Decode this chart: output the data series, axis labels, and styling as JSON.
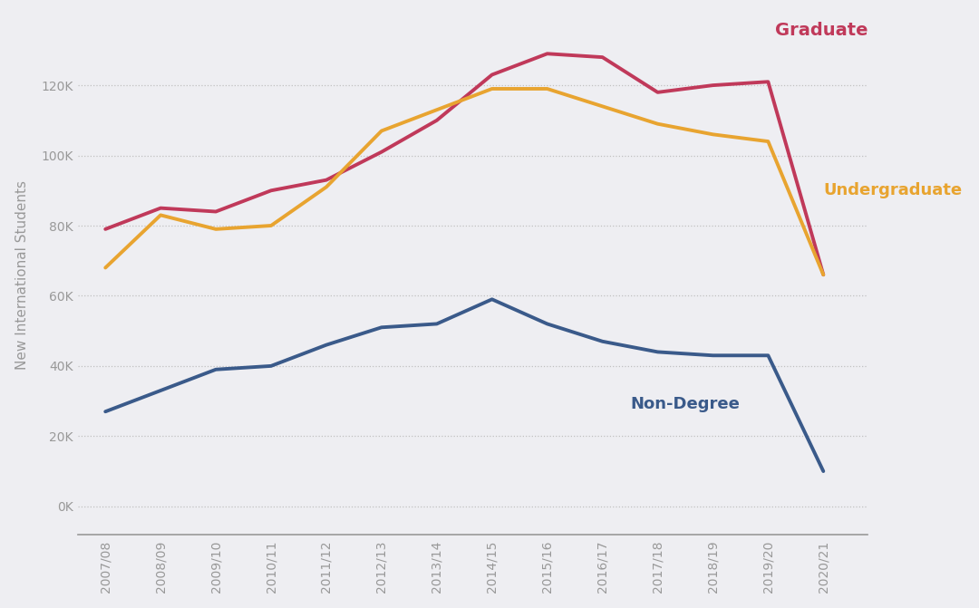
{
  "years": [
    "2007/08",
    "2008/09",
    "2009/10",
    "2010/11",
    "2011/12",
    "2012/13",
    "2013/14",
    "2014/15",
    "2015/16",
    "2016/17",
    "2017/18",
    "2018/19",
    "2019/20",
    "2020/21"
  ],
  "graduate": [
    79000,
    85000,
    84000,
    90000,
    93000,
    101000,
    110000,
    123000,
    129000,
    128000,
    118000,
    120000,
    121000,
    66000
  ],
  "undergraduate": [
    68000,
    83000,
    79000,
    80000,
    91000,
    107000,
    113000,
    119000,
    119000,
    114000,
    109000,
    106000,
    104000,
    66000
  ],
  "non_degree": [
    27000,
    33000,
    39000,
    40000,
    46000,
    51000,
    52000,
    59000,
    52000,
    47000,
    44000,
    43000,
    43000,
    10000
  ],
  "graduate_color": "#c0395a",
  "undergraduate_color": "#e8a430",
  "non_degree_color": "#3a5a8a",
  "background_color": "#eeeef2",
  "ylabel": "New International Students",
  "yticks": [
    0,
    20000,
    40000,
    60000,
    80000,
    100000,
    120000
  ],
  "ytick_labels": [
    "0K",
    "20K",
    "40K",
    "60K",
    "80K",
    "100K",
    "120K"
  ],
  "graduate_label": "Graduate",
  "undergraduate_label": "Undergraduate",
  "non_degree_label": "Non-Degree",
  "line_width": 2.8
}
